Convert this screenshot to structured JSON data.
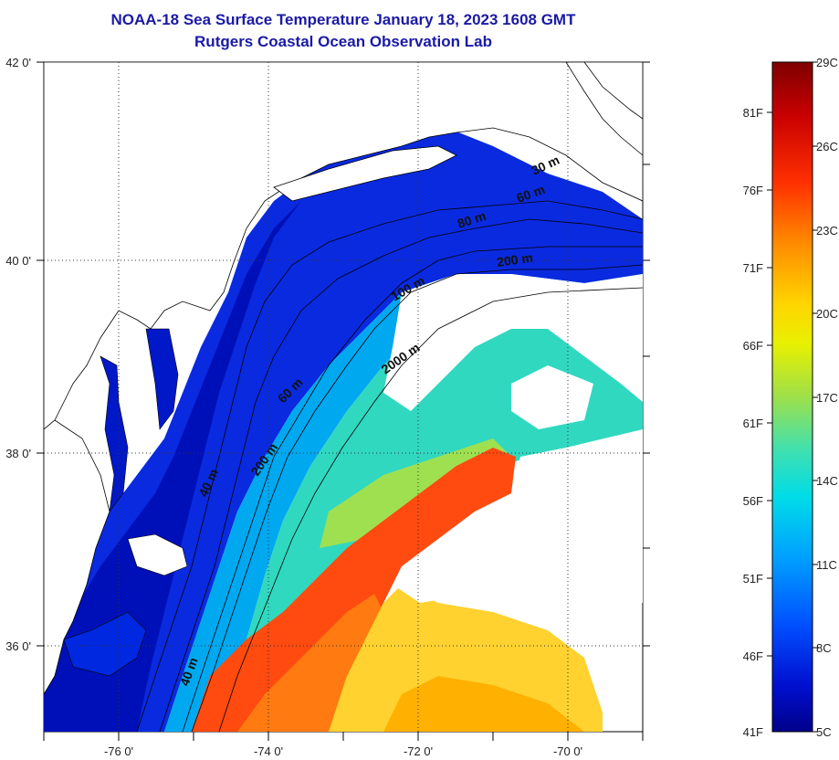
{
  "header": {
    "title": "NOAA-18 Sea Surface Temperature January 18, 2023 1608 GMT",
    "subtitle": "Rutgers Coastal Ocean Observation Lab"
  },
  "map": {
    "lat_ticks": [
      "42 0'",
      "40 0'",
      "38 0'",
      "36 0'"
    ],
    "lon_ticks": [
      "-76 0'",
      "-74 0'",
      "-72 0'",
      "-70 0'"
    ],
    "contours": [
      {
        "label": "30 m"
      },
      {
        "label": "60 m"
      },
      {
        "label": "80 m"
      },
      {
        "label": "200 m"
      },
      {
        "label": "100 m"
      },
      {
        "label": "2000 m"
      },
      {
        "label": "60 m"
      },
      {
        "label": "200 m"
      },
      {
        "label": "40 m"
      },
      {
        "label": "40 m"
      }
    ]
  },
  "colorbar": {
    "fahrenheit": [
      "81F",
      "76F",
      "71F",
      "66F",
      "61F",
      "56F",
      "51F",
      "46F",
      "41F"
    ],
    "celsius": [
      "29C",
      "26C",
      "23C",
      "20C",
      "17C",
      "14C",
      "11C",
      "8C",
      "5C"
    ],
    "colors": [
      "#7f0000",
      "#d00000",
      "#ff3a00",
      "#ff8c00",
      "#ffd000",
      "#e6f000",
      "#a0e040",
      "#40e0a0",
      "#00d8e8",
      "#00a0ff",
      "#0050ff",
      "#0010d0",
      "#00008f"
    ]
  }
}
